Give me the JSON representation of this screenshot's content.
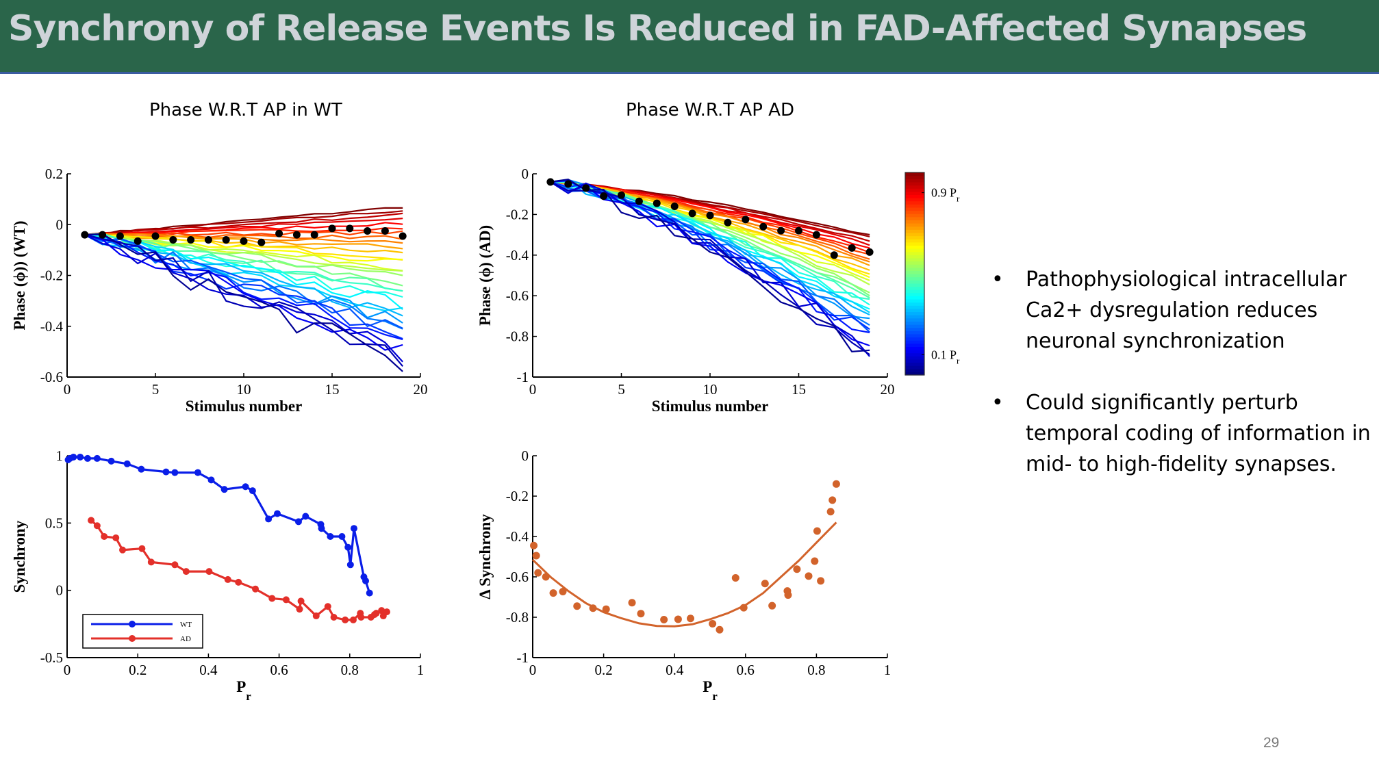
{
  "slide": {
    "title": "Synchrony of Release Events Is Reduced in FAD-Affected Synapses",
    "subtitles": [
      "Phase W.R.T AP in WT",
      "Phase W.R.T AP AD"
    ],
    "bullets": [
      "Pathophysiological intracellular Ca2+ dysregulation reduces neuronal synchronization",
      "Could significantly perturb temporal coding of information in mid- to high-fidelity synapses."
    ],
    "bullet_glyph": "•",
    "page_number": "29",
    "colors": {
      "header_bg": "#2a654a",
      "header_text": "#cfd4d9",
      "wt": "#0a1ee8",
      "ad": "#e3302a",
      "fit": "#d2632b"
    }
  },
  "chart_data": [
    {
      "type": "line",
      "id": "phase-wt",
      "title": "Phase W.R.T AP in WT",
      "xlabel": "Stimulus number",
      "ylabel": "Phase (ϕ)) (WT)",
      "xlim": [
        0,
        20
      ],
      "ylim": [
        -0.6,
        0.2
      ],
      "xticks": [
        0,
        5,
        10,
        15,
        20
      ],
      "yticks": [
        0.2,
        0,
        -0.2,
        -0.4,
        -0.6
      ],
      "ytick_labels": [
        "0.2",
        "0",
        "-0.2",
        "-0.4",
        "-0.6"
      ],
      "x": [
        1,
        2,
        3,
        4,
        5,
        6,
        7,
        8,
        9,
        10,
        11,
        12,
        13,
        14,
        15,
        16,
        17,
        18,
        19
      ],
      "mean_series": {
        "name": "mean",
        "marker": "black-dot",
        "values": [
          -0.04,
          -0.04,
          -0.045,
          -0.065,
          -0.045,
          -0.06,
          -0.06,
          -0.06,
          -0.06,
          -0.065,
          -0.07,
          -0.035,
          -0.04,
          -0.04,
          -0.015,
          -0.015,
          -0.025,
          -0.025,
          -0.045
        ]
      },
      "family": {
        "colormap": "jet",
        "n_curves": 32,
        "pr_range": [
          0.05,
          0.9
        ],
        "endpoint_values_low_pr": 0.07,
        "endpoint_values_high_pr": -0.55
      }
    },
    {
      "type": "line",
      "id": "phase-ad",
      "title": "Phase W.R.T AP AD",
      "xlabel": "Stimulus number",
      "ylabel": "Phase (ϕ) (AD)",
      "xlim": [
        0,
        20
      ],
      "ylim": [
        -1,
        0
      ],
      "xticks": [
        0,
        5,
        10,
        15,
        20
      ],
      "yticks": [
        0,
        -0.2,
        -0.4,
        -0.6,
        -0.8,
        -1
      ],
      "ytick_labels": [
        "0",
        "-0.2",
        "-0.4",
        "-0.6",
        "-0.8",
        "-1"
      ],
      "x": [
        1,
        2,
        3,
        4,
        5,
        6,
        7,
        8,
        9,
        10,
        11,
        12,
        13,
        14,
        15,
        16,
        17,
        18,
        19
      ],
      "mean_series": {
        "name": "mean",
        "marker": "black-dot",
        "values": [
          -0.04,
          -0.05,
          -0.07,
          -0.11,
          -0.105,
          -0.135,
          -0.145,
          -0.16,
          -0.195,
          -0.205,
          -0.24,
          -0.225,
          -0.26,
          -0.28,
          -0.28,
          -0.3,
          -0.4,
          -0.365,
          -0.385
        ]
      },
      "family": {
        "colormap": "jet",
        "n_curves": 32,
        "pr_range": [
          0.05,
          0.9
        ],
        "endpoint_values_low_pr": -0.3,
        "endpoint_values_high_pr": -0.9
      },
      "colorbar": {
        "colormap": "jet",
        "labels": [
          {
            "text": "0.9 P",
            "sub": "r",
            "value": 0.9
          },
          {
            "text": "0.1 P",
            "sub": "r",
            "value": 0.1
          }
        ],
        "range": [
          0,
          1
        ]
      }
    },
    {
      "type": "line",
      "id": "synchrony",
      "xlabel": "P",
      "xlabel_sub": "r",
      "ylabel": "Synchrony",
      "xlim": [
        0,
        1
      ],
      "ylim": [
        -0.5,
        1
      ],
      "xticks": [
        0,
        0.2,
        0.4,
        0.6,
        0.8,
        1
      ],
      "xtick_labels": [
        "0",
        "0.2",
        "0.4",
        "0.6",
        "0.8",
        "1"
      ],
      "yticks": [
        1,
        0.5,
        0,
        -0.5
      ],
      "ytick_labels": [
        "1",
        "0.5",
        "0",
        "-0.5"
      ],
      "legend": {
        "position": "bottom-left",
        "entries": [
          "WT",
          "AD"
        ]
      },
      "series": [
        {
          "name": "WT",
          "color": "#0a1ee8",
          "x": [
            0.003,
            0.008,
            0.018,
            0.037,
            0.058,
            0.085,
            0.125,
            0.17,
            0.21,
            0.28,
            0.305,
            0.37,
            0.408,
            0.445,
            0.505,
            0.525,
            0.57,
            0.595,
            0.655,
            0.675,
            0.718,
            0.72,
            0.745,
            0.778,
            0.795,
            0.802,
            0.812,
            0.84,
            0.845,
            0.856
          ],
          "y": [
            0.97,
            0.98,
            0.99,
            0.99,
            0.98,
            0.98,
            0.96,
            0.94,
            0.9,
            0.88,
            0.875,
            0.875,
            0.82,
            0.75,
            0.77,
            0.74,
            0.53,
            0.57,
            0.51,
            0.55,
            0.49,
            0.46,
            0.4,
            0.4,
            0.32,
            0.19,
            0.46,
            0.1,
            0.07,
            -0.02
          ]
        },
        {
          "name": "AD",
          "color": "#e3302a",
          "x": [
            0.068,
            0.085,
            0.105,
            0.138,
            0.157,
            0.212,
            0.238,
            0.305,
            0.337,
            0.402,
            0.455,
            0.485,
            0.533,
            0.58,
            0.62,
            0.658,
            0.662,
            0.705,
            0.738,
            0.755,
            0.787,
            0.81,
            0.83,
            0.832,
            0.86,
            0.87,
            0.875,
            0.89,
            0.895,
            0.905
          ],
          "y": [
            0.52,
            0.48,
            0.4,
            0.39,
            0.3,
            0.31,
            0.21,
            0.19,
            0.14,
            0.14,
            0.08,
            0.06,
            0.01,
            -0.06,
            -0.07,
            -0.14,
            -0.08,
            -0.19,
            -0.12,
            -0.2,
            -0.22,
            -0.22,
            -0.17,
            -0.2,
            -0.2,
            -0.18,
            -0.17,
            -0.15,
            -0.19,
            -0.16
          ]
        }
      ]
    },
    {
      "type": "scatter",
      "id": "delta-synchrony",
      "xlabel": "P",
      "xlabel_sub": "r",
      "ylabel": "Δ Synchrony",
      "xlim": [
        0,
        1
      ],
      "ylim": [
        -1,
        0
      ],
      "xticks": [
        0,
        0.2,
        0.4,
        0.6,
        0.8,
        1
      ],
      "xtick_labels": [
        "0",
        "0.2",
        "0.4",
        "0.6",
        "0.8",
        "1"
      ],
      "yticks": [
        0,
        -0.2,
        -0.4,
        -0.6,
        -0.8,
        -1
      ],
      "ytick_labels": [
        "0",
        "-0.2",
        "-0.4",
        "-0.6",
        "-0.8",
        "-1"
      ],
      "series": [
        {
          "name": "points",
          "color": "#d2632b",
          "x": [
            0.003,
            0.01,
            0.015,
            0.037,
            0.058,
            0.085,
            0.125,
            0.17,
            0.207,
            0.28,
            0.305,
            0.37,
            0.41,
            0.445,
            0.507,
            0.527,
            0.572,
            0.595,
            0.655,
            0.675,
            0.718,
            0.72,
            0.745,
            0.778,
            0.795,
            0.802,
            0.812,
            0.84,
            0.845,
            0.856
          ],
          "y": [
            -0.445,
            -0.495,
            -0.58,
            -0.6,
            -0.68,
            -0.673,
            -0.745,
            -0.755,
            -0.76,
            -0.728,
            -0.782,
            -0.812,
            -0.81,
            -0.806,
            -0.832,
            -0.862,
            -0.605,
            -0.753,
            -0.633,
            -0.743,
            -0.67,
            -0.69,
            -0.562,
            -0.596,
            -0.522,
            -0.373,
            -0.62,
            -0.277,
            -0.22,
            -0.14
          ]
        },
        {
          "name": "fit",
          "type": "line",
          "color": "#d2632b",
          "x": [
            0,
            0.05,
            0.1,
            0.15,
            0.2,
            0.25,
            0.3,
            0.35,
            0.4,
            0.45,
            0.5,
            0.55,
            0.6,
            0.65,
            0.7,
            0.75,
            0.8,
            0.856
          ],
          "y": [
            -0.515,
            -0.6,
            -0.67,
            -0.73,
            -0.775,
            -0.805,
            -0.83,
            -0.843,
            -0.845,
            -0.835,
            -0.81,
            -0.78,
            -0.74,
            -0.68,
            -0.6,
            -0.52,
            -0.43,
            -0.33
          ]
        }
      ]
    }
  ]
}
